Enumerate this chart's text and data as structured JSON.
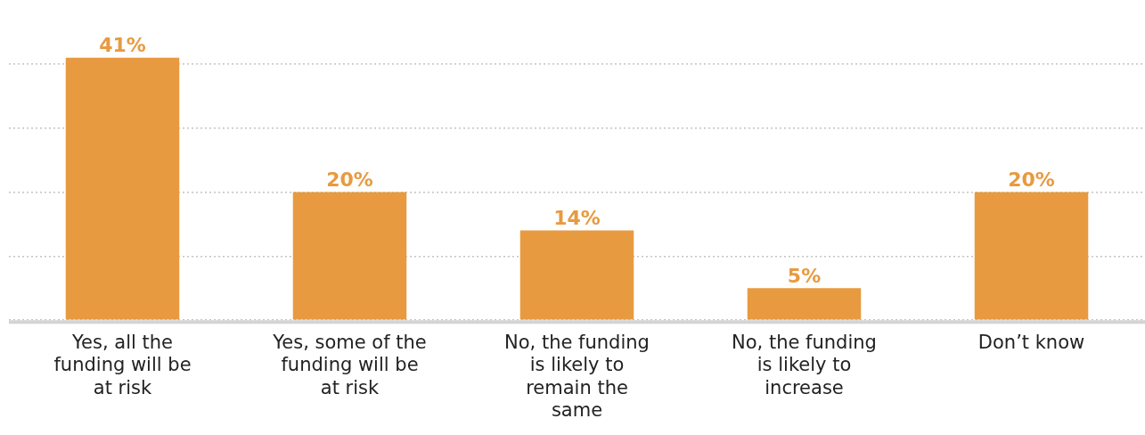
{
  "chart_data": {
    "type": "bar",
    "categories": [
      "Yes, all the funding will be at risk",
      "Yes, some of the funding will be at risk",
      "No, the funding is likely to remain the same",
      "No, the funding is likely to increase",
      "Don’t know"
    ],
    "values": [
      41,
      20,
      14,
      5,
      20
    ],
    "value_labels": [
      "41%",
      "20%",
      "14%",
      "5%",
      "20%"
    ],
    "color": "#e89a40",
    "yticks": [
      {
        "value": 0,
        "label": null
      },
      {
        "value": 10,
        "label": null
      },
      {
        "value": 20,
        "label": null
      },
      {
        "value": 30,
        "label": null
      },
      {
        "value": 40,
        "label": null
      }
    ],
    "grid": "y",
    "tick_labels": "x",
    "legend": false
  }
}
